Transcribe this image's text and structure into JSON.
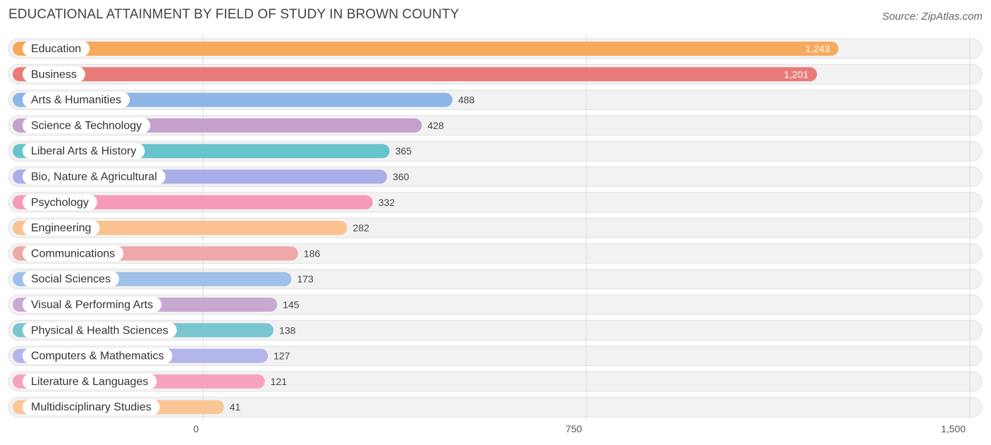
{
  "header": {
    "title": "EDUCATIONAL ATTAINMENT BY FIELD OF STUDY IN BROWN COUNTY",
    "source": "Source: ZipAtlas.com"
  },
  "chart_data": {
    "type": "bar",
    "orientation": "horizontal",
    "title": "EDUCATIONAL ATTAINMENT BY FIELD OF STUDY IN BROWN COUNTY",
    "xlabel": "",
    "ylabel": "",
    "xlim": [
      0,
      1500
    ],
    "x_ticks": [
      0,
      750,
      1500
    ],
    "x_tick_labels": [
      "0",
      "750",
      "1,500"
    ],
    "grid": true,
    "categories": [
      "Education",
      "Business",
      "Arts & Humanities",
      "Science & Technology",
      "Liberal Arts & History",
      "Bio, Nature & Agricultural",
      "Psychology",
      "Engineering",
      "Communications",
      "Social Sciences",
      "Visual & Performing Arts",
      "Physical & Health Sciences",
      "Computers & Mathematics",
      "Literature & Languages",
      "Multidisciplinary Studies"
    ],
    "values": [
      1243,
      1201,
      488,
      428,
      365,
      360,
      332,
      282,
      186,
      173,
      145,
      138,
      127,
      121,
      41
    ],
    "value_labels": [
      "1,243",
      "1,201",
      "488",
      "428",
      "365",
      "360",
      "332",
      "282",
      "186",
      "173",
      "145",
      "138",
      "127",
      "121",
      "41"
    ],
    "colors": [
      "#f7a95c",
      "#e87a78",
      "#8db6e6",
      "#c4a1cc",
      "#68c4cb",
      "#a9aee8",
      "#f59ab8",
      "#f9c28e",
      "#efa8a8",
      "#9ec0e9",
      "#c9a8d2",
      "#79c6cf",
      "#b3b5ea",
      "#f6a2bf",
      "#f9c697"
    ]
  }
}
